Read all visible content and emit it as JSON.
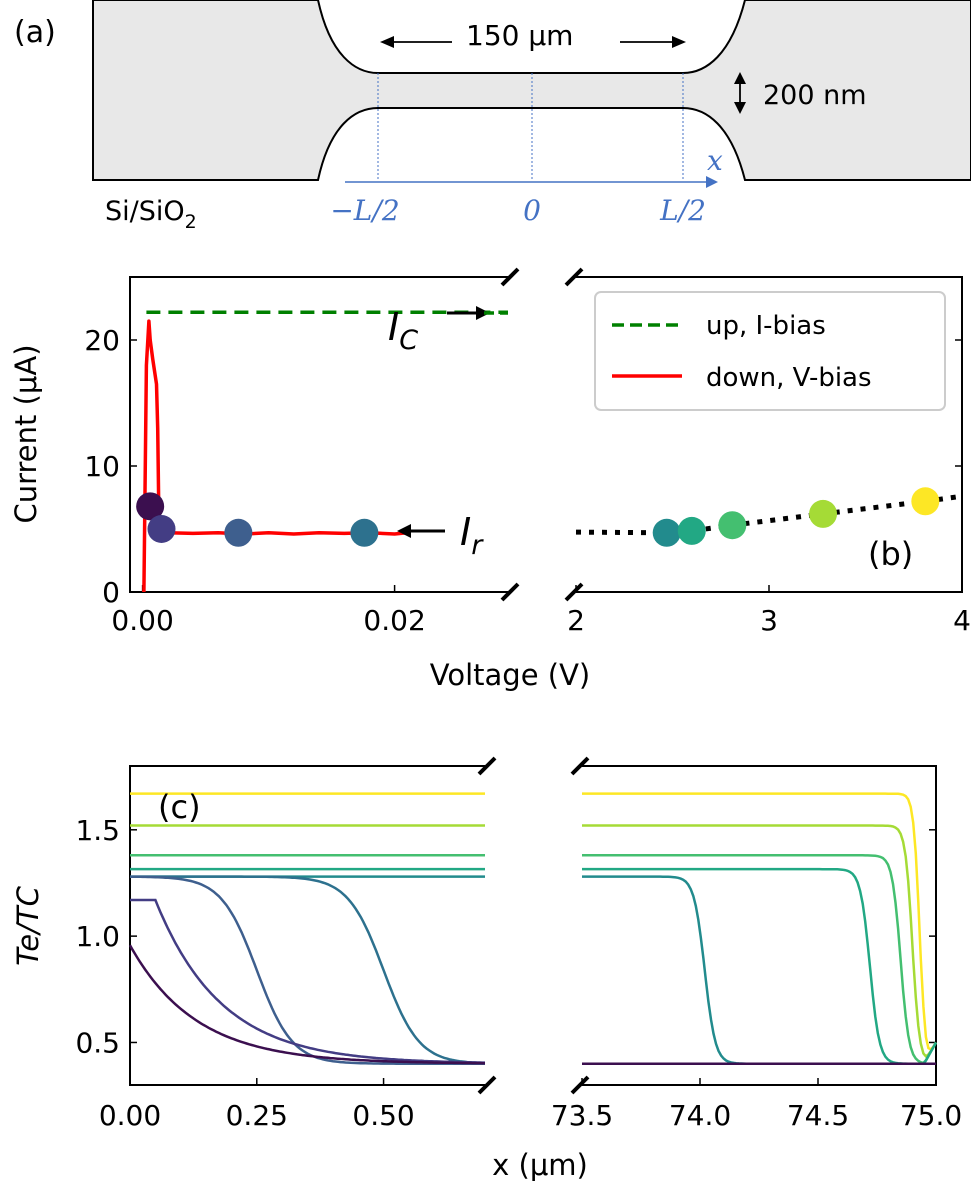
{
  "panel_a": {
    "label": "(a)",
    "width_label": "150 μm",
    "thickness_label": "200 nm",
    "substrate": "Si/SiO",
    "substrate_sub": "2",
    "axis_var": "x",
    "ticks": [
      "−L/2",
      "0",
      "L/2"
    ],
    "colors": {
      "fill": "#e8e8e8",
      "marker": "#4472c4"
    }
  },
  "chart_data": [
    {
      "type": "line",
      "panel": "(b)",
      "xlabel": "Voltage (V)",
      "ylabel": "Current (μA)",
      "x_break": true,
      "xlim_left": [
        -0.001,
        0.029
      ],
      "xlim_right": [
        2.0,
        4.0
      ],
      "ylim": [
        0,
        25
      ],
      "xticks_left": [
        "0.00",
        "0.02"
      ],
      "xticks_right": [
        "2",
        "3",
        "4"
      ],
      "yticks": [
        "0",
        "10",
        "20"
      ],
      "legend": {
        "position": "top-right",
        "entries": [
          "up, I-bias",
          "down, V-bias"
        ]
      },
      "annotations": {
        "ic": "I",
        "ic_sub": "C",
        "ir": "I",
        "ir_sub": "r"
      },
      "series": [
        {
          "name": "up, I-bias",
          "style": "dashed",
          "color": "#008000",
          "x_left": [
            0.0003,
            0.029
          ],
          "y_left": [
            22.2,
            22.2
          ]
        },
        {
          "name": "down, V-bias",
          "style": "solid",
          "color": "#ff0000",
          "x_left": [
            0.0001,
            0.0003,
            0.0005,
            0.0006,
            0.0008,
            0.0011,
            0.0012,
            0.0013,
            0.0015,
            0.002,
            0.004,
            0.006,
            0.008,
            0.01,
            0.012,
            0.014,
            0.016,
            0.018,
            0.02,
            0.021
          ],
          "y_left": [
            0,
            18,
            21.5,
            20,
            18.5,
            16.5,
            13,
            5.2,
            4.8,
            4.7,
            4.65,
            4.7,
            4.6,
            4.7,
            4.6,
            4.7,
            4.65,
            4.7,
            4.6,
            4.7
          ]
        },
        {
          "name": "",
          "style": "dotted",
          "color": "#000000",
          "x_right": [
            2.0,
            2.47,
            2.6,
            2.81,
            3.28,
            3.81,
            4.0
          ],
          "y_right": [
            4.75,
            4.7,
            4.85,
            5.3,
            6.2,
            7.2,
            7.6
          ]
        }
      ],
      "points": [
        {
          "x": 0.0006,
          "y": 6.8,
          "side": "left",
          "color": "#3b0f4f"
        },
        {
          "x": 0.0015,
          "y": 5.0,
          "side": "left",
          "color": "#433d84"
        },
        {
          "x": 0.0076,
          "y": 4.7,
          "side": "left",
          "color": "#3e5f8e"
        },
        {
          "x": 0.0176,
          "y": 4.7,
          "side": "left",
          "color": "#2d718e"
        },
        {
          "x": 2.47,
          "y": 4.7,
          "side": "right",
          "color": "#228b8d"
        },
        {
          "x": 2.6,
          "y": 4.85,
          "side": "right",
          "color": "#22a884"
        },
        {
          "x": 2.81,
          "y": 5.3,
          "side": "right",
          "color": "#44bf70"
        },
        {
          "x": 3.28,
          "y": 6.2,
          "side": "right",
          "color": "#a5db36"
        },
        {
          "x": 3.81,
          "y": 7.2,
          "side": "right",
          "color": "#fde725"
        }
      ]
    },
    {
      "type": "line",
      "panel": "(c)",
      "xlabel": "x (μm)",
      "ylabel": "Te/TC",
      "x_break": true,
      "xlim_left": [
        0,
        0.7
      ],
      "xlim_right": [
        73.5,
        75.0
      ],
      "ylim": [
        0.3,
        1.8
      ],
      "xticks_left": [
        "0.00",
        "0.25",
        "0.50"
      ],
      "xticks_right": [
        "73.5",
        "74.0",
        "74.5",
        "75.0"
      ],
      "yticks": [
        "0.5",
        "1.0",
        "1.5"
      ],
      "series": [
        {
          "color": "#fde725",
          "type": "flat",
          "level": 1.67,
          "drop_center": 74.93,
          "drop_width": 0.025
        },
        {
          "color": "#a5db36",
          "type": "flat",
          "level": 1.52,
          "drop_center": 74.9,
          "drop_width": 0.03
        },
        {
          "color": "#44bf70",
          "type": "flat",
          "level": 1.38,
          "drop_center": 74.85,
          "drop_width": 0.035
        },
        {
          "color": "#22a884",
          "type": "flat",
          "level": 1.315,
          "drop_center": 74.72,
          "drop_width": 0.04
        },
        {
          "color": "#228b8d",
          "type": "flat",
          "level": 1.28,
          "drop_center": 74.02,
          "drop_width": 0.045
        },
        {
          "color": "#2d718e",
          "type": "tanh",
          "level": 1.28,
          "center": 0.5,
          "width": 0.07,
          "floor": 0.4
        },
        {
          "color": "#3e5f8e",
          "type": "tanh",
          "level": 1.28,
          "center": 0.25,
          "width": 0.07,
          "floor": 0.4
        },
        {
          "color": "#433d84",
          "type": "exp",
          "start": 1.17,
          "floor": 0.4,
          "center": 0.05,
          "decay": 0.13
        },
        {
          "color": "#3b0f4f",
          "type": "exp",
          "start": 1.05,
          "floor": 0.4,
          "center": -0.02,
          "decay": 0.13
        }
      ]
    }
  ]
}
